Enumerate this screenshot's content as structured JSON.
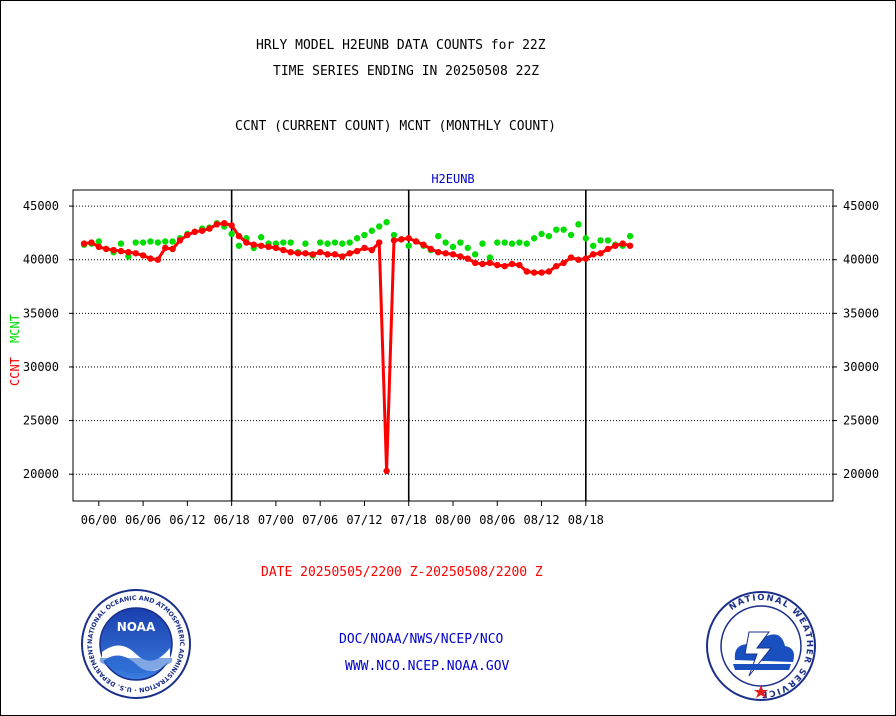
{
  "header": {
    "title_line1": "HRLY MODEL H2EUNB DATA COUNTS for 22Z",
    "title_line2": "TIME SERIES ENDING IN 20250508 22Z",
    "subtitle": "CCNT (CURRENT COUNT) MCNT (MONTHLY COUNT)"
  },
  "footer": {
    "date_range": "DATE 20250505/2200 Z-20250508/2200 Z",
    "org_path": "DOC/NOAA/NWS/NCEP/NCO",
    "website": "WWW.NCO.NCEP.NOAA.GOV"
  },
  "logos": {
    "noaa_text": "NOAA",
    "noaa_ring_text": "NATIONAL OCEANIC AND ATMOSPHERIC ADMINISTRATION · U.S. DEPARTMENT OF COMMERCE",
    "nws_ring_text": "NATIONAL WEATHER SERVICE"
  },
  "colors": {
    "ccnt": "#ff0000",
    "mcnt": "#00dd00",
    "title": "#000000",
    "panel_label": "#0000cc",
    "footer_date": "#ff0000",
    "footer_links": "#0000cc"
  },
  "chart_data": {
    "type": "line",
    "panel_label": "H2EUNB",
    "ylabel_ccnt": "CCNT",
    "ylabel_mcnt": "MCNT",
    "xlim": [
      -3.5,
      99.5
    ],
    "ylim": [
      17500,
      46500
    ],
    "yticks": [
      20000,
      25000,
      30000,
      35000,
      40000,
      45000
    ],
    "ytick_labels": [
      "20000",
      "25000",
      "30000",
      "35000",
      "40000",
      "45000"
    ],
    "xticks": [
      0,
      12,
      24,
      36,
      48,
      60,
      72,
      84,
      96
    ],
    "xtick_labels": [
      "06/00",
      "06/06",
      "06/12",
      "06/18",
      "07/00",
      "07/06",
      "07/12",
      "07/18",
      "08/00",
      "08/06",
      "08/12",
      "08/18"
    ],
    "xtick_positions": [
      0,
      6,
      12,
      18,
      24,
      30,
      36,
      42,
      48,
      54,
      60,
      66
    ],
    "day_boundaries": [
      18,
      42,
      66
    ],
    "grid": true,
    "series": [
      {
        "name": "CCNT",
        "x": [
          -2,
          -1,
          0,
          1,
          2,
          3,
          4,
          5,
          6,
          7,
          8,
          9,
          10,
          11,
          12,
          13,
          14,
          15,
          16,
          17,
          18,
          19,
          20,
          21,
          22,
          23,
          24,
          25,
          26,
          27,
          28,
          29,
          30,
          31,
          32,
          33,
          34,
          35,
          36,
          37,
          38,
          39,
          40,
          41,
          42,
          43,
          44,
          45,
          46,
          47,
          48,
          49,
          50,
          51,
          52,
          53,
          54,
          55,
          56,
          57,
          58,
          59,
          60,
          61,
          62,
          63,
          64,
          65,
          66,
          67,
          68,
          69,
          70,
          71,
          72
        ],
        "values": [
          41500,
          41600,
          41200,
          41000,
          40900,
          40800,
          40700,
          40600,
          40400,
          40100,
          40000,
          41100,
          41000,
          41800,
          42300,
          42600,
          42700,
          42900,
          43300,
          43400,
          43200,
          42200,
          41600,
          41400,
          41300,
          41200,
          41100,
          40900,
          40700,
          40600,
          40600,
          40500,
          40700,
          40500,
          40500,
          40300,
          40600,
          40800,
          41100,
          40900,
          41600,
          20300,
          41800,
          41900,
          42000,
          41700,
          41400,
          41000,
          40700,
          40600,
          40500,
          40300,
          40100,
          39700,
          39600,
          39700,
          39500,
          39400,
          39600,
          39500,
          38900,
          38800,
          38800,
          38900,
          39400,
          39700,
          40200,
          40000,
          40100,
          40500,
          40600,
          41000,
          41300,
          41500,
          41300
        ]
      },
      {
        "name": "MCNT",
        "x": [
          -2,
          -1,
          0,
          1,
          2,
          3,
          4,
          5,
          6,
          7,
          8,
          9,
          10,
          11,
          12,
          13,
          14,
          15,
          16,
          17,
          18,
          19,
          20,
          21,
          22,
          23,
          24,
          25,
          26,
          27,
          28,
          29,
          30,
          31,
          32,
          33,
          34,
          35,
          36,
          37,
          38,
          39,
          40,
          41,
          42,
          43,
          44,
          45,
          46,
          47,
          48,
          49,
          50,
          51,
          52,
          53,
          54,
          55,
          56,
          57,
          58,
          59,
          60,
          61,
          62,
          63,
          64,
          65,
          66,
          67,
          68,
          69,
          70,
          71,
          72
        ],
        "values": [
          41400,
          41500,
          41700,
          41000,
          40700,
          41500,
          40300,
          41600,
          41600,
          41700,
          41600,
          41700,
          41700,
          42000,
          42400,
          42600,
          42900,
          43000,
          43400,
          43100,
          42400,
          41300,
          42000,
          41100,
          42100,
          41500,
          41500,
          41600,
          41600,
          40700,
          41500,
          40400,
          41600,
          41500,
          41600,
          41500,
          41600,
          42000,
          42300,
          42700,
          43100,
          43500,
          42300,
          41900,
          41300,
          41700,
          41300,
          40900,
          42200,
          41600,
          41200,
          41600,
          41100,
          40500,
          41500,
          40200,
          41600,
          41600,
          41500,
          41600,
          41500,
          42000,
          42400,
          42200,
          42800,
          42800,
          42300,
          43300,
          42000,
          41300,
          41800,
          41800,
          41400,
          41300,
          42200
        ]
      }
    ]
  }
}
